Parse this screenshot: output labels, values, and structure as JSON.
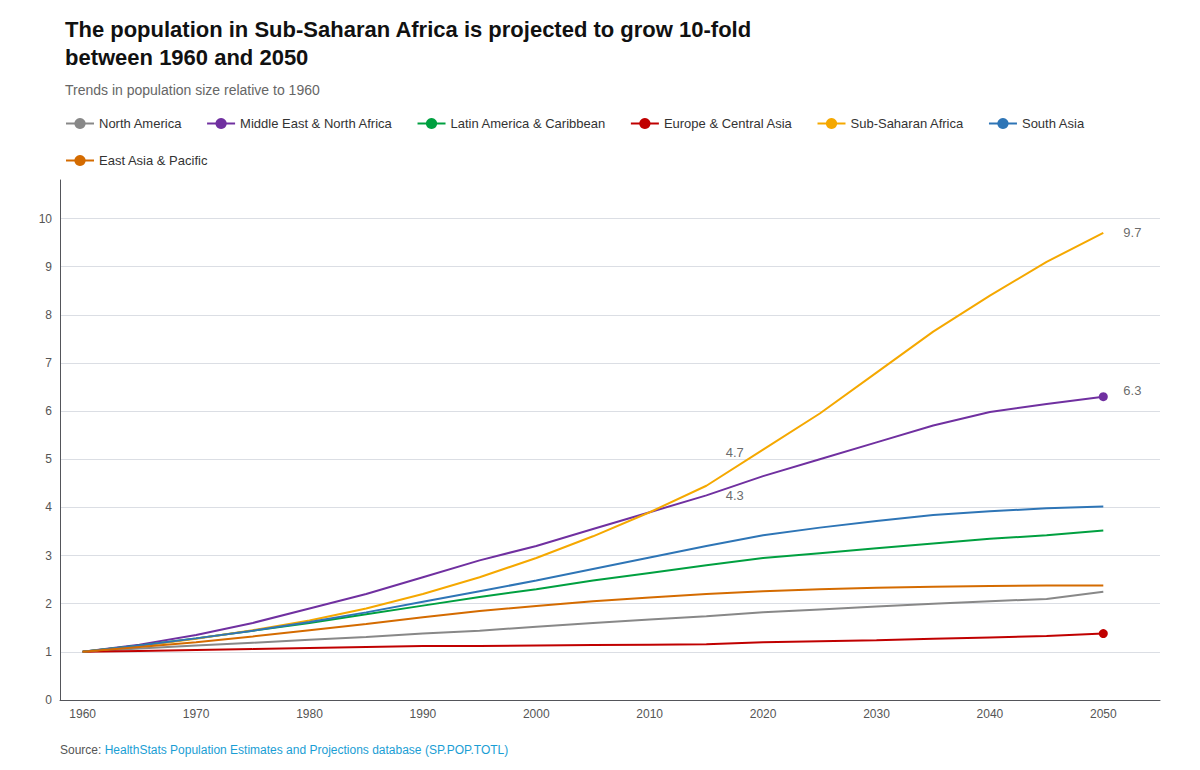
{
  "chart_data": {
    "type": "line",
    "title": "The population in Sub-Saharan Africa is projected to grow 10-fold\nbetween 1960 and 2050",
    "subtitle": "Trends in population size relative to 1960",
    "source": {
      "prefix": "Source:",
      "text": "HealthStats Population Estimates and Projections database (SP.POP.TOTL)",
      "color": "#1a9ed4"
    },
    "x": [
      1960,
      1965,
      1970,
      1975,
      1980,
      1985,
      1990,
      1995,
      2000,
      2005,
      2010,
      2015,
      2020,
      2025,
      2030,
      2035,
      2040,
      2045,
      2050
    ],
    "series": [
      {
        "name": "North America",
        "color": "#888888",
        "values": [
          1.0,
          1.07,
          1.13,
          1.19,
          1.25,
          1.31,
          1.38,
          1.44,
          1.52,
          1.6,
          1.67,
          1.74,
          1.82,
          1.88,
          1.94,
          2.0,
          2.05,
          2.1,
          2.25
        ]
      },
      {
        "name": "Middle East & North Africa",
        "color": "#7030a0",
        "marker": "end",
        "values": [
          1.0,
          1.15,
          1.35,
          1.6,
          1.9,
          2.2,
          2.55,
          2.9,
          3.2,
          3.55,
          3.9,
          4.25,
          4.65,
          5.0,
          5.35,
          5.7,
          5.98,
          6.15,
          6.3
        ]
      },
      {
        "name": "Latin America & Caribbean",
        "color": "#00a040",
        "values": [
          1.0,
          1.13,
          1.28,
          1.44,
          1.6,
          1.78,
          1.96,
          2.14,
          2.3,
          2.48,
          2.64,
          2.8,
          2.95,
          3.05,
          3.15,
          3.25,
          3.35,
          3.42,
          3.52
        ]
      },
      {
        "name": "Europe & Central Asia",
        "color": "#c00000",
        "marker": "end",
        "values": [
          1.0,
          1.02,
          1.04,
          1.06,
          1.08,
          1.1,
          1.12,
          1.12,
          1.13,
          1.14,
          1.15,
          1.16,
          1.2,
          1.22,
          1.24,
          1.27,
          1.3,
          1.33,
          1.38
        ]
      },
      {
        "name": "Sub-Saharan Africa",
        "color": "#f5a800",
        "values": [
          1.0,
          1.12,
          1.27,
          1.45,
          1.65,
          1.9,
          2.2,
          2.55,
          2.95,
          3.4,
          3.9,
          4.45,
          5.2,
          5.95,
          6.8,
          7.65,
          8.4,
          9.1,
          9.7
        ]
      },
      {
        "name": "South Asia",
        "color": "#2e75b6",
        "values": [
          1.0,
          1.13,
          1.28,
          1.44,
          1.62,
          1.82,
          2.04,
          2.26,
          2.48,
          2.72,
          2.96,
          3.2,
          3.42,
          3.58,
          3.72,
          3.84,
          3.92,
          3.98,
          4.02
        ]
      },
      {
        "name": "East Asia & Pacific",
        "color": "#d46b00",
        "values": [
          1.0,
          1.1,
          1.2,
          1.32,
          1.45,
          1.58,
          1.72,
          1.85,
          1.95,
          2.05,
          2.13,
          2.2,
          2.26,
          2.3,
          2.33,
          2.35,
          2.37,
          2.38,
          2.38
        ]
      }
    ],
    "annotations": [
      {
        "text": "4.7",
        "x": 2017.5,
        "y": 4.95,
        "position": "above"
      },
      {
        "text": "4.3",
        "x": 2017.5,
        "y": 4.45,
        "position": "below"
      },
      {
        "text": "9.7",
        "x": 2051.5,
        "y": 9.7,
        "position": "right"
      },
      {
        "text": "6.3",
        "x": 2051.5,
        "y": 6.42,
        "position": "right"
      }
    ],
    "xlim": [
      1958,
      2055
    ],
    "xticks": [
      1960,
      1970,
      1980,
      1990,
      2000,
      2010,
      2020,
      2030,
      2040,
      2050
    ],
    "ylim": [
      0,
      10.8
    ],
    "yticks": [
      0,
      1,
      2,
      3,
      4,
      5,
      6,
      7,
      8,
      9,
      10
    ],
    "grid": "y",
    "legend": "top-left"
  }
}
